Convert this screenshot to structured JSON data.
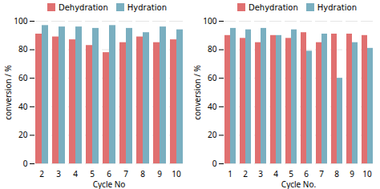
{
  "chart_data": [
    {
      "type": "bar",
      "categories": [
        2,
        3,
        4,
        5,
        6,
        7,
        8,
        9,
        10
      ],
      "series": [
        {
          "name": "Dehydration",
          "color": "#E07070",
          "values": [
            91,
            89,
            87,
            83,
            78,
            85,
            89,
            85,
            87
          ]
        },
        {
          "name": "Hydration",
          "color": "#7AAFC0",
          "values": [
            97,
            96,
            96,
            95,
            97,
            95,
            92,
            96,
            94
          ]
        }
      ],
      "x_label": "Cycle No",
      "y_label": "conversion / %",
      "ylim": [
        0,
        100
      ],
      "yticks": [
        0,
        20,
        40,
        60,
        80,
        100
      ],
      "grid": true,
      "legend": "top"
    },
    {
      "type": "bar",
      "categories": [
        1,
        2,
        3,
        4,
        5,
        6,
        7,
        8,
        9,
        10
      ],
      "series": [
        {
          "name": "Dehydration",
          "color": "#E07070",
          "values": [
            90,
            88,
            85,
            90,
            88,
            92,
            85,
            91,
            91,
            90
          ]
        },
        {
          "name": "Hydration",
          "color": "#7AAFC0",
          "values": [
            95,
            94,
            95,
            90,
            94,
            79,
            91,
            60,
            85,
            81
          ]
        }
      ],
      "x_label": "Cycle No.",
      "y_label": "conversion / %",
      "ylim": [
        0,
        100
      ],
      "yticks": [
        0,
        20,
        40,
        60,
        80,
        100
      ],
      "grid": true,
      "legend": "top"
    }
  ]
}
